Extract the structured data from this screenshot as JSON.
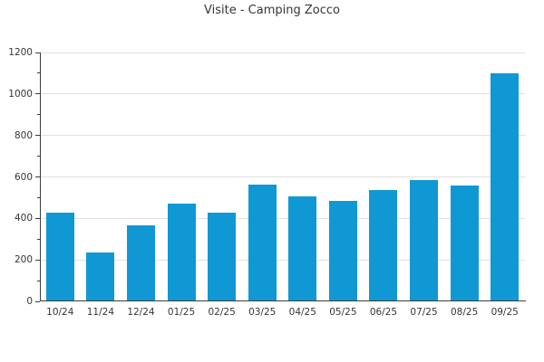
{
  "title": "Visite - Camping Zocco",
  "chart_data": {
    "type": "bar",
    "title": "Visite - Camping Zocco",
    "categories": [
      "10/24",
      "11/24",
      "12/24",
      "01/25",
      "02/25",
      "03/25",
      "04/25",
      "05/25",
      "06/25",
      "07/25",
      "08/25",
      "09/25"
    ],
    "values": [
      428,
      235,
      367,
      470,
      429,
      562,
      506,
      483,
      536,
      584,
      560,
      1100
    ],
    "xlabel": "",
    "ylabel": "",
    "ylim": [
      0,
      1200
    ],
    "yticks": [
      0,
      200,
      400,
      600,
      800,
      1000,
      1200
    ],
    "minor_ytick_step": 100,
    "grid": "horizontal-major-only",
    "legend": "none"
  },
  "colors": {
    "bar": "#1098d4",
    "grid": "#e0e0e0",
    "spine": "#3c3c3c",
    "text": "#363636",
    "background": "#ffffff"
  }
}
